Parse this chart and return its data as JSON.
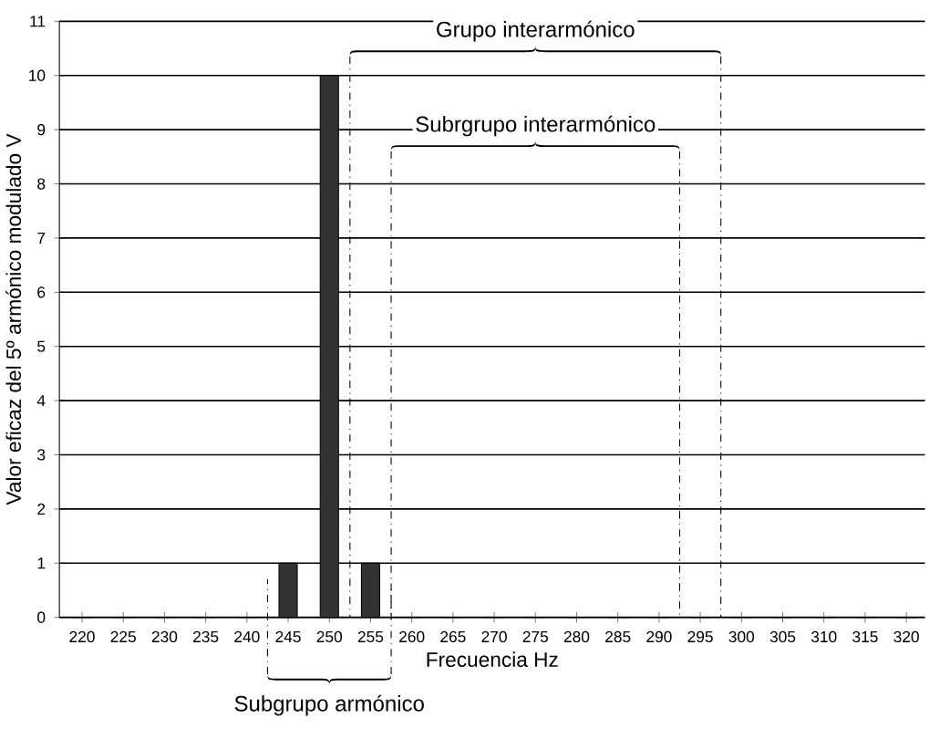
{
  "chart_data": {
    "type": "bar",
    "xlabel": "Frecuencia Hz",
    "ylabel": "Valor eficaz del 5º armónico modulado  V",
    "categories": [
      "220",
      "225",
      "230",
      "235",
      "240",
      "245",
      "250",
      "255",
      "260",
      "265",
      "270",
      "275",
      "280",
      "285",
      "290",
      "295",
      "300",
      "305",
      "310",
      "315",
      "320"
    ],
    "values": [
      0,
      0,
      0,
      0,
      0,
      1,
      10,
      1,
      0,
      0,
      0,
      0,
      0,
      0,
      0,
      0,
      0,
      0,
      0,
      0,
      0
    ],
    "color": "#333333",
    "ylim": [
      0,
      11
    ],
    "yticks": [
      0,
      1,
      2,
      3,
      4,
      5,
      6,
      7,
      8,
      9,
      10,
      11
    ],
    "grid": "y",
    "annotations": [
      "Grupo interarmónico",
      "Subrgrupo interarmónico",
      "Subgrupo armónico"
    ]
  }
}
